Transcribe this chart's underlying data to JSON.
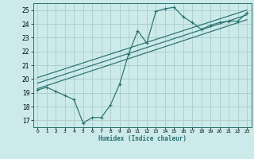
{
  "xlabel": "Humidex (Indice chaleur)",
  "bg_color": "#cceaea",
  "grid_color": "#aacccc",
  "line_color": "#2a7070",
  "xlim": [
    -0.5,
    23.5
  ],
  "ylim": [
    16.5,
    25.5
  ],
  "xticks": [
    0,
    1,
    2,
    3,
    4,
    5,
    6,
    7,
    8,
    9,
    10,
    11,
    12,
    13,
    14,
    15,
    16,
    17,
    18,
    19,
    20,
    21,
    22,
    23
  ],
  "yticks": [
    17,
    18,
    19,
    20,
    21,
    22,
    23,
    24,
    25
  ],
  "line1_x": [
    0,
    1,
    2,
    3,
    4,
    5,
    6,
    7,
    8,
    9,
    10,
    11,
    12,
    13,
    14,
    15,
    16,
    17,
    18,
    19,
    20,
    21,
    22,
    23
  ],
  "line1_y": [
    19.2,
    19.4,
    19.1,
    18.8,
    18.5,
    16.8,
    17.2,
    17.2,
    18.1,
    19.6,
    21.8,
    23.5,
    22.6,
    24.9,
    25.1,
    25.2,
    24.5,
    24.1,
    23.6,
    23.9,
    24.1,
    24.2,
    24.2,
    24.8
  ],
  "line2_x": [
    0,
    23
  ],
  "line2_y": [
    19.3,
    24.3
  ],
  "line3_x": [
    0,
    23
  ],
  "line3_y": [
    19.7,
    24.65
  ],
  "line4_x": [
    0,
    23
  ],
  "line4_y": [
    20.1,
    25.0
  ]
}
